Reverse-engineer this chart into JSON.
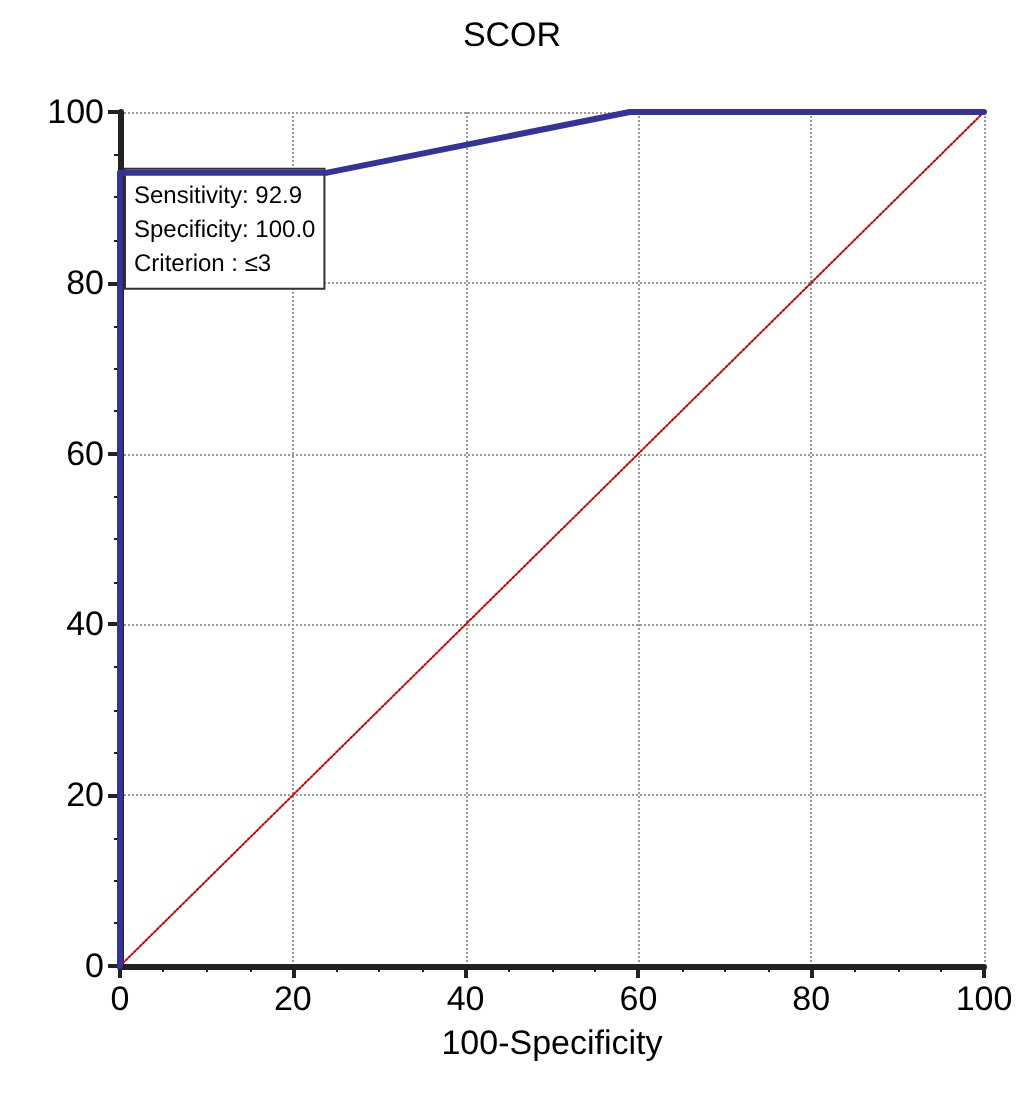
{
  "chart_data": {
    "type": "line",
    "title": "SCOR",
    "xlabel": "100-Specificity",
    "xlim": [
      0,
      100
    ],
    "xticks": [
      0,
      20,
      40,
      60,
      80,
      100
    ],
    "ylim": [
      0,
      100
    ],
    "yticks": [
      0,
      20,
      40,
      60,
      80,
      100
    ],
    "grid": true,
    "marker": "none",
    "series": [
      {
        "x": [
          0,
          0,
          24,
          59,
          100
        ],
        "values": [
          0,
          92.9,
          92.9,
          100,
          100
        ],
        "color": "#333399",
        "line_style": "solid"
      },
      {
        "x": [
          0,
          100
        ],
        "values": [
          0,
          100
        ],
        "color": "#cc0000",
        "line_style": "dotted"
      }
    ],
    "annotations": [
      {
        "text": "Sensitivity: 92.9\nSpecificity: 100.0\nCriterion : ≤3",
        "x": 0,
        "y": 92.9
      }
    ]
  }
}
